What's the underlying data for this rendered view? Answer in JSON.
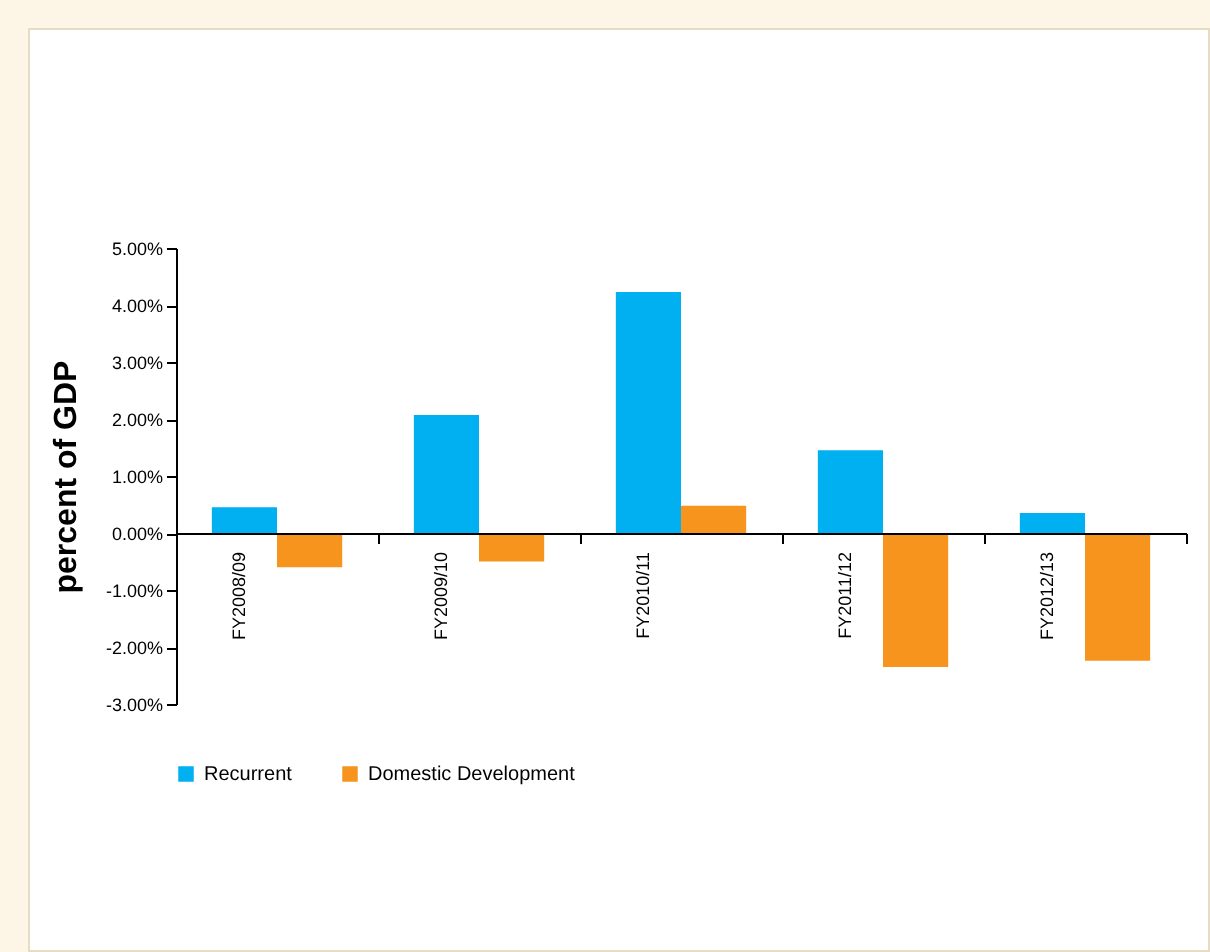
{
  "chart_data": {
    "type": "bar",
    "ylabel": "percent of GDP",
    "categories": [
      "FY2008/09",
      "FY2009/10",
      "FY2010/11",
      "FY2011/12",
      "FY2012/13"
    ],
    "series": [
      {
        "name": "Recurrent",
        "color": "#00b0f0",
        "values": [
          0.45,
          2.07,
          4.23,
          1.45,
          0.35
        ]
      },
      {
        "name": "Domestic Development",
        "color": "#f7941d",
        "values": [
          -0.6,
          -0.5,
          0.48,
          -2.35,
          -2.24
        ]
      }
    ],
    "ylim": [
      -3,
      5
    ],
    "yticks": [
      {
        "value": -3,
        "label": "-3.00%"
      },
      {
        "value": -2,
        "label": "-2.00%"
      },
      {
        "value": -1,
        "label": "-1.00%"
      },
      {
        "value": 0,
        "label": "0.00%"
      },
      {
        "value": 1,
        "label": "1.00%"
      },
      {
        "value": 2,
        "label": "2.00%"
      },
      {
        "value": 3,
        "label": "3.00%"
      },
      {
        "value": 4,
        "label": "4.00%"
      },
      {
        "value": 5,
        "label": "5.00%"
      }
    ],
    "grid": false,
    "legend": "bottom"
  }
}
